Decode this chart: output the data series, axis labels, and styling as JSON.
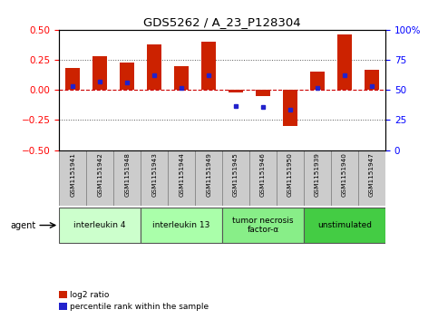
{
  "title": "GDS5262 / A_23_P128304",
  "samples": [
    "GSM1151941",
    "GSM1151942",
    "GSM1151948",
    "GSM1151943",
    "GSM1151944",
    "GSM1151949",
    "GSM1151945",
    "GSM1151946",
    "GSM1151950",
    "GSM1151939",
    "GSM1151940",
    "GSM1151947"
  ],
  "log2_ratio": [
    0.18,
    0.28,
    0.23,
    0.38,
    0.2,
    0.4,
    -0.02,
    -0.05,
    -0.3,
    0.15,
    0.46,
    0.17
  ],
  "percentile": [
    53,
    57,
    56,
    62,
    52,
    62,
    37,
    36,
    34,
    52,
    62,
    53
  ],
  "agents": [
    {
      "label": "interleukin 4",
      "start": 0,
      "end": 3,
      "color": "#ccffcc"
    },
    {
      "label": "interleukin 13",
      "start": 3,
      "end": 6,
      "color": "#aaffaa"
    },
    {
      "label": "tumor necrosis\nfactor-α",
      "start": 6,
      "end": 9,
      "color": "#88ee88"
    },
    {
      "label": "unstimulated",
      "start": 9,
      "end": 12,
      "color": "#44cc44"
    }
  ],
  "bar_color": "#cc2200",
  "dot_color": "#2222cc",
  "ymin": -0.5,
  "ymax": 0.5,
  "yticks_left": [
    -0.5,
    -0.25,
    0.0,
    0.25,
    0.5
  ],
  "yticks_right": [
    0,
    25,
    50,
    75,
    100
  ],
  "hline_color": "#cc0000",
  "dotted_color": "#555555",
  "bg_color": "#ffffff",
  "bar_width": 0.55,
  "agent_label_color": "#000000",
  "sample_bg": "#cccccc",
  "sample_edge": "#888888"
}
